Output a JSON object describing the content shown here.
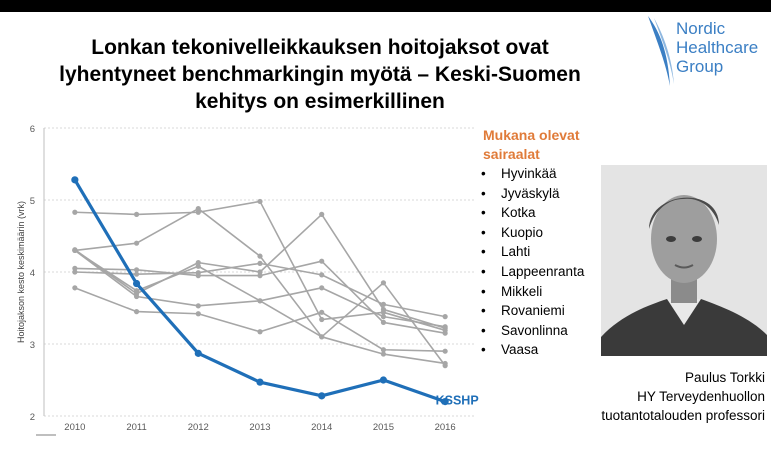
{
  "title_lines": [
    "Lonkan tekonivelleikkauksen hoitojaksot ovat",
    "lyhentyneet benchmarkingin myötä – Keski-Suomen",
    "kehitys on esimerkillinen"
  ],
  "logo": {
    "lines": [
      "Nordic",
      "Healthcare",
      "Group"
    ],
    "color": "#3b7fc4"
  },
  "participants": {
    "heading_lines": [
      "Mukana olevat",
      "sairaalat"
    ],
    "bullet": "•",
    "items": [
      "Hyvinkää",
      "Jyväskylä",
      "Kotka",
      "Kuopio",
      "Lahti",
      "Lappeenranta",
      "Mikkeli",
      "Rovaniemi",
      "Savonlinna",
      "Vaasa"
    ],
    "heading_color": "#e07b39"
  },
  "person": {
    "name": "Paulus Torkki",
    "title_lines": [
      "HY Terveydenhuollon",
      "tuotantotalouden professori"
    ]
  },
  "chart_data": {
    "type": "line",
    "ylabel": "Hoitojakson kesto keskimäärin (vrk)",
    "x": [
      "2010",
      "2011",
      "2012",
      "2013",
      "2014",
      "2015",
      "2016"
    ],
    "yticks": [
      "2",
      "3",
      "4",
      "5",
      "6"
    ],
    "ylim": [
      2,
      6
    ],
    "grid": true,
    "highlight_color": "#1f6fb8",
    "other_color": "#a6a6a6",
    "series": [
      {
        "name": "KSSHP",
        "highlight": true,
        "values": [
          5.28,
          3.84,
          2.87,
          2.47,
          2.28,
          2.5,
          2.2
        ]
      },
      {
        "values": [
          4.83,
          4.8,
          4.83,
          4.98,
          3.34,
          3.44,
          3.19
        ]
      },
      {
        "values": [
          4.3,
          4.4,
          4.88,
          4.22,
          3.1,
          3.85,
          2.7
        ]
      },
      {
        "values": [
          4.31,
          3.7,
          4.13,
          4.0,
          4.8,
          3.48,
          3.22
        ]
      },
      {
        "values": [
          4.0,
          3.97,
          3.99,
          4.12,
          3.96,
          3.55,
          3.38
        ]
      },
      {
        "values": [
          3.78,
          3.45,
          3.42,
          3.17,
          3.44,
          2.92,
          2.9
        ]
      },
      {
        "values": [
          4.05,
          4.03,
          3.95,
          3.95,
          4.15,
          3.3,
          3.15
        ]
      },
      {
        "values": [
          4.3,
          3.66,
          3.53,
          3.6,
          3.78,
          3.38,
          3.24
        ]
      },
      {
        "values": [
          4.3,
          3.74,
          4.08,
          3.6,
          3.1,
          2.86,
          2.73
        ]
      }
    ]
  }
}
